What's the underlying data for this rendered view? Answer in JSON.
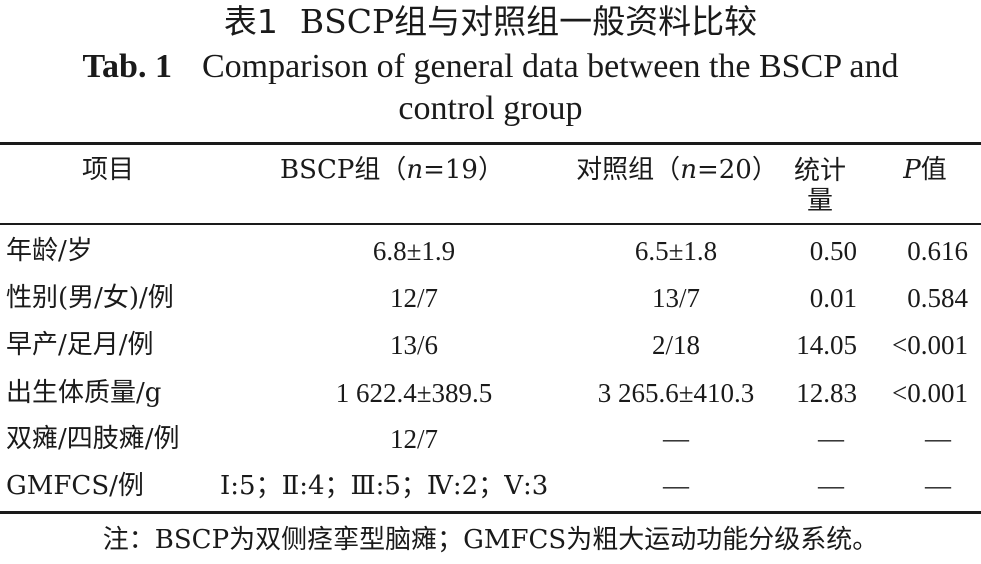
{
  "title_cn": {
    "label": "表1",
    "text": "BSCP组与对照组一般资料比较"
  },
  "title_en": {
    "label": "Tab. 1",
    "line1": "Comparison of general data between the BSCP and",
    "line2": "control group"
  },
  "header": {
    "item": "项目",
    "bscp_prefix": "BSCP组（",
    "bscp_n": "n",
    "bscp_suffix": "=19）",
    "ctrl_prefix": "对照组（",
    "ctrl_n": "n",
    "ctrl_suffix": "=20）",
    "stat_line1": "统计",
    "stat_line2": "量",
    "p_letter": "P",
    "p_suffix": "值"
  },
  "rows": [
    {
      "item": "年龄/岁",
      "bscp": "6.8±1.9",
      "ctrl": "6.5±1.8",
      "stat": "0.50",
      "p": "0.616"
    },
    {
      "item": "性别(男/女)/例",
      "bscp": "12/7",
      "ctrl": "13/7",
      "stat": "0.01",
      "p": "0.584"
    },
    {
      "item": "早产/足月/例",
      "bscp": "13/6",
      "ctrl": "2/18",
      "stat": "14.05",
      "p": "<0.001"
    },
    {
      "item": "出生体质量/g",
      "bscp": "1 622.4±389.5",
      "ctrl": "3 265.6±410.3",
      "stat": "12.83",
      "p": "<0.001"
    },
    {
      "item": "双瘫/四肢瘫/例",
      "bscp": "12/7",
      "ctrl": "—",
      "stat": "—",
      "p": "—"
    },
    {
      "item": "GMFCS/例",
      "bscp": "Ⅰ:5；Ⅱ:4；Ⅲ:5；Ⅳ:2；Ⅴ:3",
      "ctrl": "—",
      "stat": "—",
      "p": "—"
    }
  ],
  "note": "注：BSCP为双侧痉挛型脑瘫；GMFCS为粗大运动功能分级系统。"
}
